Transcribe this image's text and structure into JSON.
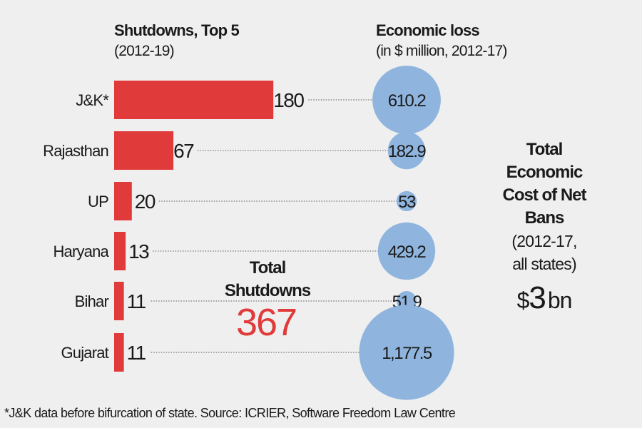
{
  "chart_data": {
    "type": "bar",
    "title": "Shutdowns, Top 5",
    "subtitle": "(2012-19)",
    "categories": [
      "J&K*",
      "Rajasthan",
      "UP",
      "Haryana",
      "Bihar",
      "Gujarat"
    ],
    "series": [
      {
        "name": "Shutdowns",
        "values": [
          180,
          67,
          20,
          13,
          11,
          11
        ],
        "labels": [
          "180",
          "67",
          "20",
          "13",
          "11",
          "11"
        ],
        "color": "#e03a3a"
      },
      {
        "name": "Economic loss",
        "values": [
          610.2,
          182.9,
          53,
          429.2,
          51.9,
          1177.5
        ],
        "labels": [
          "610.2",
          "182.9",
          "53",
          "429.2",
          "51.9",
          "1,177.5"
        ],
        "color": "#8fb5de",
        "mark": "bubble"
      }
    ],
    "bubble_title": "Economic loss",
    "bubble_subtitle": "(in $ million, 2012-17)",
    "xlabel": "",
    "ylabel": "",
    "grid": false
  },
  "total_shutdowns": {
    "label_line1": "Total",
    "label_line2": "Shutdowns",
    "value": "367"
  },
  "total_cost": {
    "lines": [
      "Total",
      "Economic",
      "Cost of Net",
      "Bans",
      "(2012-17,",
      "all states)"
    ],
    "value_prefix": "$",
    "value": "3",
    "value_suffix": "bn"
  },
  "footnote": "*J&K data before bifurcation of state. Source: ICRIER, Software Freedom Law Centre"
}
